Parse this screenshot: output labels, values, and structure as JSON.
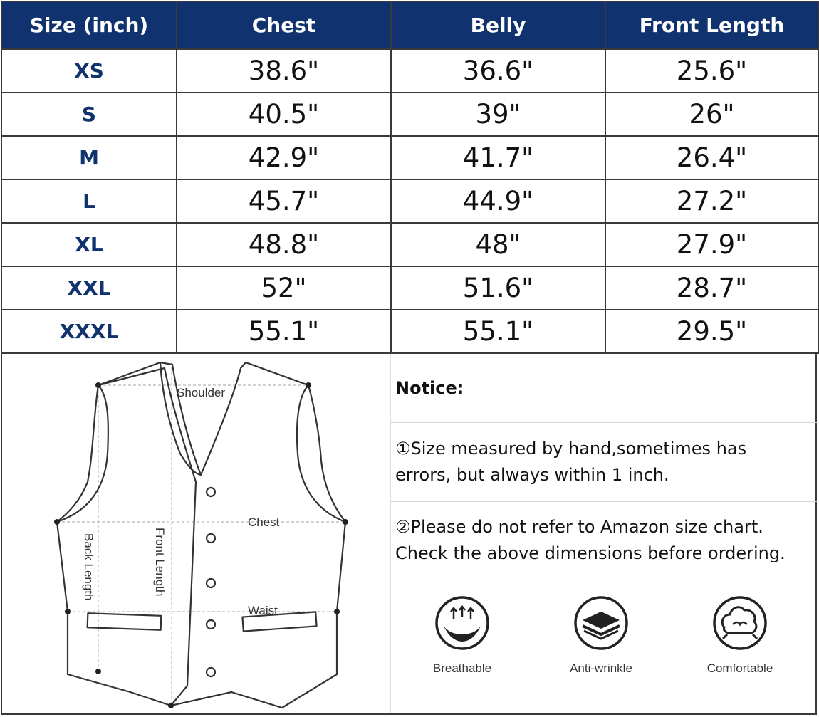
{
  "table": {
    "headers": [
      "Size  (inch)",
      "Chest",
      "Belly",
      "Front Length"
    ],
    "rows": [
      {
        "size": "XS",
        "chest": "38.6\"",
        "belly": "36.6\"",
        "front_length": "25.6\""
      },
      {
        "size": "S",
        "chest": "40.5\"",
        "belly": "39\"",
        "front_length": "26\""
      },
      {
        "size": "M",
        "chest": "42.9\"",
        "belly": "41.7\"",
        "front_length": "26.4\""
      },
      {
        "size": "L",
        "chest": "45.7\"",
        "belly": "44.9\"",
        "front_length": "27.2\""
      },
      {
        "size": "XL",
        "chest": "48.8\"",
        "belly": "48\"",
        "front_length": "27.9\""
      },
      {
        "size": "XXL",
        "chest": "52\"",
        "belly": "51.6\"",
        "front_length": "28.7\""
      },
      {
        "size": "XXXL",
        "chest": "55.1\"",
        "belly": "55.1\"",
        "front_length": "29.5\""
      }
    ]
  },
  "diagram": {
    "shoulder": "Shoulder",
    "chest": "Chest",
    "waist": "Waist",
    "back_length": "Back Length",
    "front_length": "Front Length"
  },
  "notice": {
    "heading": "Notice:",
    "item1_line1": "①Size measured by hand,sometimes has",
    "item1_line2": "errors, but always within 1 inch.",
    "item2_line1": "②Please do not refer to Amazon size chart.",
    "item2_line2": "Check the above dimensions before ordering."
  },
  "features": [
    {
      "label": "Breathable",
      "icon": "breathable-icon"
    },
    {
      "label": "Anti-wrinkle",
      "icon": "anti-wrinkle-icon"
    },
    {
      "label": "Comfortable",
      "icon": "comfortable-icon"
    }
  ],
  "colors": {
    "header_bg": "#10326e",
    "header_text": "#ffffff",
    "size_text": "#10326e",
    "border": "#3a3a3a"
  }
}
